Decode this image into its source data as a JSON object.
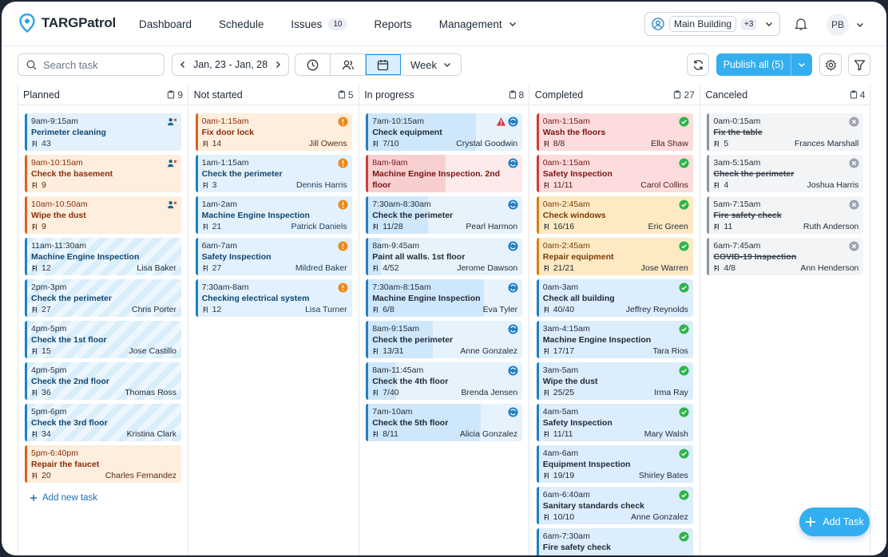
{
  "app": {
    "name": "TARGPatrol"
  },
  "nav": {
    "items": [
      {
        "label": "Dashboard"
      },
      {
        "label": "Schedule"
      },
      {
        "label": "Issues",
        "badge": "10"
      },
      {
        "label": "Reports"
      },
      {
        "label": "Management"
      }
    ],
    "building": "Main Building",
    "building_more": "+3",
    "avatar": "PB"
  },
  "toolbar": {
    "search_placeholder": "Search task",
    "date_range": "Jan, 23 - Jan, 28",
    "view": "Week",
    "publish_label": "Publish all (5)"
  },
  "columns": [
    {
      "title": "Planned",
      "count": "9",
      "cards": [
        {
          "time": "9am-9:15am",
          "title": "Perimeter cleaning",
          "meta": "43",
          "person": "",
          "style": "blue",
          "status": "user-x"
        },
        {
          "time": "9am-10:15am",
          "title": "Check the basement",
          "meta": "9",
          "person": "",
          "style": "orange",
          "status": "user-x"
        },
        {
          "time": "10am-10:50am",
          "title": "Wipe the dust",
          "meta": "9",
          "person": "",
          "style": "orange",
          "status": "user-x"
        },
        {
          "time": "11am-11:30am",
          "title": "Machine Engine Inspection",
          "meta": "12",
          "person": "Lisa Baker",
          "style": "stripe",
          "status": ""
        },
        {
          "time": "2pm-3pm",
          "title": "Check the perimeter",
          "meta": "27",
          "person": "Chris Porter",
          "style": "stripe",
          "status": ""
        },
        {
          "time": "4pm-5pm",
          "title": "Check the 1st floor",
          "meta": "15",
          "person": "Jose Castillo",
          "style": "stripe",
          "status": ""
        },
        {
          "time": "4pm-5pm",
          "title": "Check the 2nd floor",
          "meta": "36",
          "person": "Thomas Ross",
          "style": "stripe",
          "status": ""
        },
        {
          "time": "5pm-6pm",
          "title": "Check the 3rd floor",
          "meta": "34",
          "person": "Kristina Clark",
          "style": "stripe",
          "status": ""
        },
        {
          "time": "5pm-6:40pm",
          "title": "Repair the faucet",
          "meta": "20",
          "person": "Charles Fernandez",
          "style": "orange",
          "status": ""
        }
      ],
      "add_label": "Add new task"
    },
    {
      "title": "Not started",
      "count": "5",
      "cards": [
        {
          "time": "0am-1:15am",
          "title": "Fix door lock",
          "meta": "14",
          "person": "Jill Owens",
          "style": "orange",
          "status": "warn"
        },
        {
          "time": "1am-1:15am",
          "title": "Check the perimeter",
          "meta": "3",
          "person": "Dennis Harris",
          "style": "blue",
          "status": "warn"
        },
        {
          "time": "1am-2am",
          "title": "Machine Engine Inspection",
          "meta": "21",
          "person": "Patrick Daniels",
          "style": "blue",
          "status": "warn"
        },
        {
          "time": "6am-7am",
          "title": "Safety Inspection",
          "meta": "27",
          "person": "Mildred Baker",
          "style": "blue",
          "status": "warn"
        },
        {
          "time": "7:30am-8am",
          "title": "Checking electrical system",
          "meta": "12",
          "person": "Lisa Turner",
          "style": "blue",
          "status": "warn"
        }
      ]
    },
    {
      "title": "In progress",
      "count": "8",
      "cards": [
        {
          "time": "7am-10:15am",
          "title": "Check equipment",
          "meta": "7/10",
          "person": "Crystal Goodwin",
          "style": "prog",
          "status": "sync",
          "alert": true,
          "progress": 0.7
        },
        {
          "time": "8am-9am",
          "title": "Machine Engine Inspection. 2nd floor",
          "meta": "4/8",
          "person": "Vera Mitchell",
          "style": "progred",
          "status": "sync",
          "progress": 0.5
        },
        {
          "time": "7:30am-8:30am",
          "title": "Check the perimeter",
          "meta": "11/28",
          "person": "Pearl Harmon",
          "style": "prog",
          "status": "sync",
          "progress": 0.39
        },
        {
          "time": "8am-9:45am",
          "title": "Paint all walls. 1st floor",
          "meta": "4/52",
          "person": "Jerome Dawson",
          "style": "prog",
          "status": "sync",
          "progress": 0.08
        },
        {
          "time": "7:30am-8:15am",
          "title": "Machine Engine Inspection",
          "meta": "6/8",
          "person": "Eva Tyler",
          "style": "prog",
          "status": "sync",
          "progress": 0.75
        },
        {
          "time": "8am-9:15am",
          "title": "Check the perimeter",
          "meta": "13/31",
          "person": "Anne Gonzalez",
          "style": "prog",
          "status": "sync",
          "progress": 0.42
        },
        {
          "time": "8am-11:45am",
          "title": "Check the 4th floor",
          "meta": "7/40",
          "person": "Brenda Jensen",
          "style": "prog",
          "status": "sync",
          "progress": 0.18
        },
        {
          "time": "7am-10am",
          "title": "Check the 5th floor",
          "meta": "8/11",
          "person": "Alicia Gonzalez",
          "style": "prog",
          "status": "sync",
          "progress": 0.73
        }
      ]
    },
    {
      "title": "Completed",
      "count": "27",
      "cards": [
        {
          "time": "0am-1:15am",
          "title": "Wash the floors",
          "meta": "8/8",
          "person": "Ella Shaw",
          "style": "red",
          "status": "done"
        },
        {
          "time": "0am-1:15am",
          "title": "Safety Inspection",
          "meta": "11/11",
          "person": "Carol Collins",
          "style": "red",
          "status": "done"
        },
        {
          "time": "0am-2:45am",
          "title": "Check windows",
          "meta": "16/16",
          "person": "Eric Green",
          "style": "yellow",
          "status": "done"
        },
        {
          "time": "0am-2:45am",
          "title": "Repair equipment",
          "meta": "21/21",
          "person": "Jose Warren",
          "style": "yellow",
          "status": "done"
        },
        {
          "time": "0am-3am",
          "title": "Check all building",
          "meta": "40/40",
          "person": "Jeffrey Reynolds",
          "style": "green",
          "status": "done"
        },
        {
          "time": "3am-4:15am",
          "title": "Machine Engine Inspection",
          "meta": "17/17",
          "person": "Tara Rios",
          "style": "green",
          "status": "done"
        },
        {
          "time": "3am-5am",
          "title": "Wipe the dust",
          "meta": "25/25",
          "person": "Irma Ray",
          "style": "green",
          "status": "done"
        },
        {
          "time": "4am-5am",
          "title": "Safety Inspection",
          "meta": "11/11",
          "person": "Mary Walsh",
          "style": "green",
          "status": "done"
        },
        {
          "time": "4am-6am",
          "title": "Equipment Inspection",
          "meta": "19/19",
          "person": "Shirley Bates",
          "style": "green",
          "status": "done"
        },
        {
          "time": "6am-6:40am",
          "title": "Sanitary standards check",
          "meta": "10/10",
          "person": "Anne Gonzalez",
          "style": "green",
          "status": "done"
        },
        {
          "time": "6am-7:30am",
          "title": "Fire safety check",
          "meta": "",
          "person": "",
          "style": "green",
          "status": "done"
        }
      ]
    },
    {
      "title": "Canceled",
      "count": "4",
      "cards": [
        {
          "time": "0am-0:15am",
          "title": "Fix the table",
          "meta": "5",
          "person": "Frances Marshall",
          "style": "gray",
          "status": "cancel"
        },
        {
          "time": "3am-5:15am",
          "title": "Check the perimeter",
          "meta": "4",
          "person": "Joshua Harris",
          "style": "gray",
          "status": "cancel"
        },
        {
          "time": "5am-7:15am",
          "title": "Fire safety check",
          "meta": "11",
          "person": "Ruth Anderson",
          "style": "gray",
          "status": "cancel"
        },
        {
          "time": "6am-7:45am",
          "title": "COVID-19 Inspection",
          "meta": "4/8",
          "person": "Ann Henderson",
          "style": "gray",
          "status": "cancel"
        }
      ]
    }
  ],
  "fab_label": "Add Task",
  "colors": {
    "accent": "#33aef0",
    "blue": "#1f7fc4",
    "orange": "#e8741e",
    "green": "#2fb44a",
    "red": "#d43a3a"
  }
}
